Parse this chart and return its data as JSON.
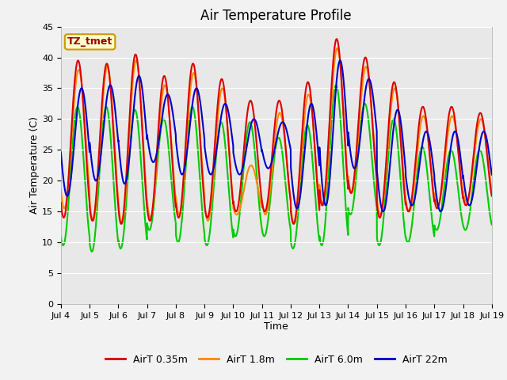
{
  "title": "Air Temperature Profile",
  "xlabel": "Time",
  "ylabel": "Air Temperature (C)",
  "annotation": "TZ_tmet",
  "ylim": [
    0,
    45
  ],
  "yticks": [
    0,
    5,
    10,
    15,
    20,
    25,
    30,
    35,
    40,
    45
  ],
  "xtick_labels": [
    "Jul 4",
    "Jul 5",
    "Jul 6",
    "Jul 7",
    "Jul 8",
    "Jul 9",
    "Jul 10",
    "Jul 11",
    "Jul 12",
    "Jul 13",
    "Jul 14",
    "Jul 15",
    "Jul 16",
    "Jul 17",
    "Jul 18",
    "Jul 19"
  ],
  "xtick_positions": [
    0,
    1,
    2,
    3,
    4,
    5,
    6,
    7,
    8,
    9,
    10,
    11,
    12,
    13,
    14,
    15
  ],
  "colors": {
    "AirT 0.35m": "#dd0000",
    "AirT 1.8m": "#ff8800",
    "AirT 6.0m": "#00cc00",
    "AirT 22m": "#0000cc"
  },
  "legend_labels": [
    "AirT 0.35m",
    "AirT 1.8m",
    "AirT 6.0m",
    "AirT 22m"
  ],
  "bg_color": "#e8e8e8",
  "fig_bg_color": "#f2f2f2",
  "title_fontsize": 12,
  "axis_label_fontsize": 9,
  "tick_fontsize": 8,
  "legend_fontsize": 9,
  "line_width": 1.5,
  "peaks_035": [
    39.5,
    39.0,
    40.5,
    37.0,
    39.0,
    36.5,
    33.0,
    33.0,
    36.0,
    43.0,
    40.0,
    36.0,
    32.0,
    32.0,
    31.0
  ],
  "troughs_035": [
    14.0,
    13.5,
    13.0,
    13.5,
    14.0,
    14.0,
    15.0,
    15.0,
    13.0,
    16.0,
    18.0,
    14.0,
    15.0,
    15.5,
    16.0
  ],
  "peaks_18": [
    38.0,
    38.5,
    39.5,
    35.5,
    37.5,
    35.0,
    22.5,
    31.0,
    34.0,
    41.5,
    38.5,
    35.0,
    30.5,
    30.5,
    30.0
  ],
  "troughs_18": [
    15.5,
    13.5,
    13.0,
    14.0,
    14.5,
    13.5,
    14.5,
    14.5,
    13.0,
    16.0,
    18.0,
    14.5,
    15.0,
    16.0,
    16.5
  ],
  "peaks_60": [
    32.0,
    32.0,
    31.5,
    30.0,
    32.0,
    29.5,
    29.5,
    27.0,
    29.0,
    35.5,
    32.5,
    30.0,
    25.5,
    25.0,
    25.0
  ],
  "troughs_60": [
    9.5,
    8.5,
    9.0,
    12.0,
    10.0,
    9.5,
    11.0,
    11.0,
    9.0,
    9.5,
    14.5,
    9.5,
    10.0,
    12.0,
    12.0
  ],
  "peaks_22": [
    35.0,
    35.5,
    37.0,
    34.0,
    35.0,
    32.5,
    30.0,
    29.5,
    32.5,
    39.5,
    36.5,
    31.5,
    28.0,
    28.0,
    28.0
  ],
  "troughs_22": [
    17.5,
    20.0,
    19.5,
    23.0,
    21.0,
    21.0,
    21.0,
    22.0,
    15.5,
    16.0,
    22.0,
    15.0,
    16.0,
    15.0,
    16.0
  ],
  "phase_035": 0.6,
  "phase_18": 0.62,
  "phase_60": 0.58,
  "phase_22": 0.72
}
